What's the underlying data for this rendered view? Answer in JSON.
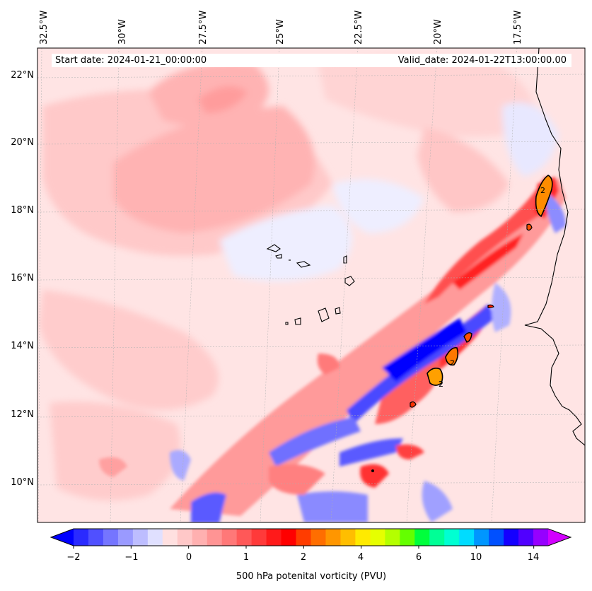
{
  "map": {
    "title_start": "Start date: 2024-01-21_00:00:00",
    "title_valid": "Valid_date: 2024-01-22T13:00:00.00",
    "variable": "500 hPa potenital vorticity (PVU)",
    "lon_labels": [
      "32.5°W",
      "30°W",
      "27.5°W",
      "25°W",
      "22.5°W",
      "20°W",
      "17.5°W"
    ],
    "lat_labels": [
      "22°N",
      "20°N",
      "18°N",
      "16°N",
      "14°N",
      "12°N",
      "10°N"
    ],
    "contour_label": "2"
  },
  "colorbar": {
    "ticks": [
      "−2",
      "−1",
      "0",
      "1",
      "2",
      "4",
      "6",
      "10",
      "14"
    ],
    "colors": [
      "#0000ff",
      "#2a2aff",
      "#5050ff",
      "#7575ff",
      "#9a9aff",
      "#bdbdff",
      "#e0e0ff",
      "#ffe0e0",
      "#ffc8c8",
      "#ffb0b0",
      "#ff9494",
      "#ff7878",
      "#ff5858",
      "#ff3a3a",
      "#ff1a1a",
      "#ff0000",
      "#ff3c00",
      "#ff6e00",
      "#ff9600",
      "#ffbe00",
      "#ffea00",
      "#e6ff00",
      "#b4ff00",
      "#64ff00",
      "#00ff3c",
      "#00ff96",
      "#00ffd2",
      "#00dcff",
      "#0096ff",
      "#0050ff",
      "#1400ff",
      "#5000ff",
      "#9600ff",
      "#d200ff"
    ]
  }
}
